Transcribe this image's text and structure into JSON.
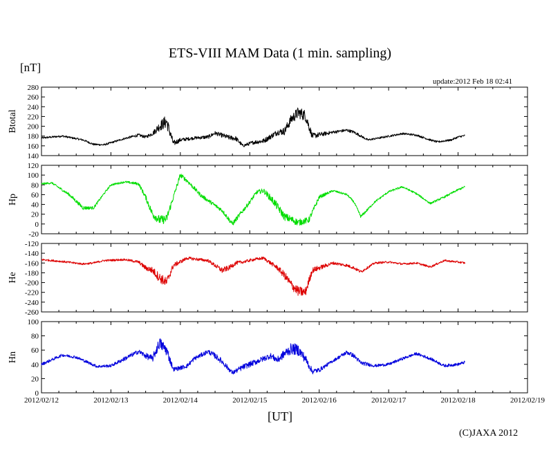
{
  "title": "ETS-VIII MAM Data (1 min. sampling)",
  "unit_label": "[nT]",
  "update_text": "update:2012 Feb 18 02:41",
  "x_unit_label": "[UT]",
  "copyright": "(C)JAXA 2012",
  "colors": {
    "btotal": "#000000",
    "hp": "#00dd00",
    "he": "#dd0000",
    "hn": "#0000dd",
    "axis": "#000000"
  },
  "chart_data": {
    "type": "line",
    "x_unit": "days since 2012/02/12 00:00 UT",
    "x_range": [
      0,
      7
    ],
    "x_ticks": [
      0,
      1,
      2,
      3,
      4,
      5,
      6,
      7
    ],
    "x_tick_labels": [
      "2012/02/12",
      "2012/02/13",
      "2012/02/14",
      "2012/02/15",
      "2012/02/16",
      "2012/02/17",
      "2012/02/18",
      "2012/02/19"
    ],
    "panels": [
      {
        "name": "Btotal",
        "ylabel": "Btotal",
        "color": "#000000",
        "ylim": [
          140,
          280
        ],
        "yticks": [
          140,
          160,
          180,
          200,
          220,
          240,
          260,
          280
        ],
        "x": [
          0,
          0.3,
          0.6,
          0.75,
          0.9,
          1.2,
          1.4,
          1.5,
          1.6,
          1.7,
          1.8,
          1.9,
          2.0,
          2.2,
          2.4,
          2.5,
          2.7,
          2.8,
          2.9,
          3.05,
          3.2,
          3.4,
          3.5,
          3.6,
          3.7,
          3.8,
          3.9,
          4.2,
          4.4,
          4.5,
          4.7,
          4.9,
          5.2,
          5.4,
          5.6,
          5.7,
          5.9,
          6.0,
          6.1
        ],
        "y": [
          176,
          180,
          172,
          163,
          162,
          175,
          182,
          178,
          185,
          200,
          210,
          165,
          172,
          176,
          178,
          186,
          177,
          175,
          160,
          167,
          170,
          188,
          190,
          215,
          228,
          222,
          180,
          188,
          192,
          188,
          172,
          177,
          185,
          182,
          172,
          168,
          172,
          178,
          181
        ],
        "noise": [
          2,
          2,
          2,
          2,
          2,
          2,
          3,
          3,
          4,
          10,
          14,
          6,
          4,
          3,
          4,
          4,
          5,
          5,
          3,
          4,
          5,
          6,
          8,
          10,
          12,
          12,
          6,
          3,
          3,
          3,
          2,
          2,
          2,
          2,
          2,
          2,
          2,
          2,
          2
        ]
      },
      {
        "name": "Hp",
        "ylabel": "Hp",
        "color": "#00dd00",
        "ylim": [
          -20,
          120
        ],
        "yticks": [
          -20,
          0,
          20,
          40,
          60,
          80,
          100,
          120
        ],
        "x": [
          0,
          0.15,
          0.4,
          0.6,
          0.75,
          0.9,
          1.0,
          1.2,
          1.4,
          1.5,
          1.6,
          1.7,
          1.8,
          1.9,
          2.0,
          2.1,
          2.3,
          2.6,
          2.75,
          3.0,
          3.1,
          3.2,
          3.35,
          3.5,
          3.7,
          3.85,
          4.0,
          4.2,
          4.4,
          4.5,
          4.6,
          4.8,
          5.0,
          5.2,
          5.4,
          5.6,
          5.8,
          6.0,
          6.1
        ],
        "y": [
          82,
          84,
          60,
          33,
          33,
          62,
          80,
          86,
          82,
          55,
          20,
          8,
          10,
          55,
          100,
          88,
          58,
          28,
          0,
          45,
          65,
          68,
          45,
          15,
          3,
          8,
          55,
          68,
          60,
          45,
          15,
          45,
          66,
          76,
          62,
          42,
          55,
          70,
          76
        ],
        "noise": [
          2,
          2,
          3,
          4,
          3,
          2,
          2,
          2,
          3,
          5,
          8,
          9,
          9,
          5,
          5,
          4,
          4,
          4,
          5,
          4,
          4,
          5,
          8,
          8,
          7,
          6,
          4,
          2,
          2,
          2,
          3,
          2,
          2,
          2,
          2,
          2,
          2,
          2,
          2
        ]
      },
      {
        "name": "He",
        "ylabel": "He",
        "color": "#dd0000",
        "ylim": [
          -260,
          -120
        ],
        "yticks": [
          -260,
          -240,
          -220,
          -200,
          -180,
          -160,
          -140,
          -120
        ],
        "x": [
          0,
          0.3,
          0.6,
          0.75,
          0.9,
          1.2,
          1.4,
          1.5,
          1.6,
          1.7,
          1.8,
          1.9,
          2.1,
          2.4,
          2.5,
          2.6,
          2.7,
          2.8,
          2.9,
          3.05,
          3.2,
          3.4,
          3.5,
          3.6,
          3.7,
          3.8,
          3.9,
          4.2,
          4.4,
          4.5,
          4.6,
          4.8,
          5.0,
          5.2,
          5.4,
          5.6,
          5.8,
          6.0,
          6.1
        ],
        "y": [
          -153,
          -157,
          -162,
          -160,
          -155,
          -153,
          -158,
          -170,
          -175,
          -190,
          -200,
          -165,
          -150,
          -155,
          -165,
          -175,
          -170,
          -160,
          -158,
          -153,
          -150,
          -170,
          -185,
          -205,
          -218,
          -220,
          -175,
          -160,
          -165,
          -170,
          -178,
          -160,
          -158,
          -162,
          -160,
          -168,
          -155,
          -158,
          -160
        ],
        "noise": [
          2,
          2,
          2,
          2,
          2,
          2,
          3,
          5,
          7,
          10,
          10,
          5,
          3,
          3,
          4,
          6,
          5,
          4,
          3,
          3,
          3,
          5,
          8,
          10,
          10,
          10,
          6,
          3,
          3,
          3,
          3,
          2,
          2,
          2,
          2,
          2,
          2,
          2,
          2
        ]
      },
      {
        "name": "Hn",
        "ylabel": "Hn",
        "color": "#0000dd",
        "ylim": [
          0,
          100
        ],
        "yticks": [
          0,
          20,
          40,
          60,
          80,
          100
        ],
        "x": [
          0,
          0.3,
          0.5,
          0.8,
          1.0,
          1.2,
          1.4,
          1.5,
          1.6,
          1.7,
          1.8,
          1.9,
          2.0,
          2.1,
          2.2,
          2.4,
          2.5,
          2.6,
          2.75,
          2.9,
          3.1,
          3.3,
          3.4,
          3.5,
          3.6,
          3.7,
          3.8,
          3.9,
          4.0,
          4.2,
          4.4,
          4.5,
          4.6,
          4.8,
          5.0,
          5.2,
          5.4,
          5.6,
          5.8,
          6.0,
          6.1
        ],
        "y": [
          40,
          53,
          50,
          37,
          38,
          48,
          58,
          52,
          48,
          70,
          60,
          33,
          35,
          38,
          48,
          58,
          52,
          44,
          28,
          36,
          44,
          52,
          46,
          55,
          62,
          60,
          48,
          30,
          32,
          45,
          57,
          52,
          42,
          38,
          40,
          48,
          55,
          48,
          38,
          40,
          43
        ],
        "noise": [
          2,
          2,
          2,
          2,
          2,
          3,
          3,
          4,
          5,
          8,
          8,
          3,
          3,
          3,
          3,
          3,
          4,
          4,
          3,
          4,
          4,
          4,
          5,
          6,
          8,
          8,
          6,
          4,
          3,
          2,
          3,
          3,
          3,
          2,
          2,
          2,
          2,
          2,
          2,
          2,
          2
        ]
      }
    ]
  }
}
